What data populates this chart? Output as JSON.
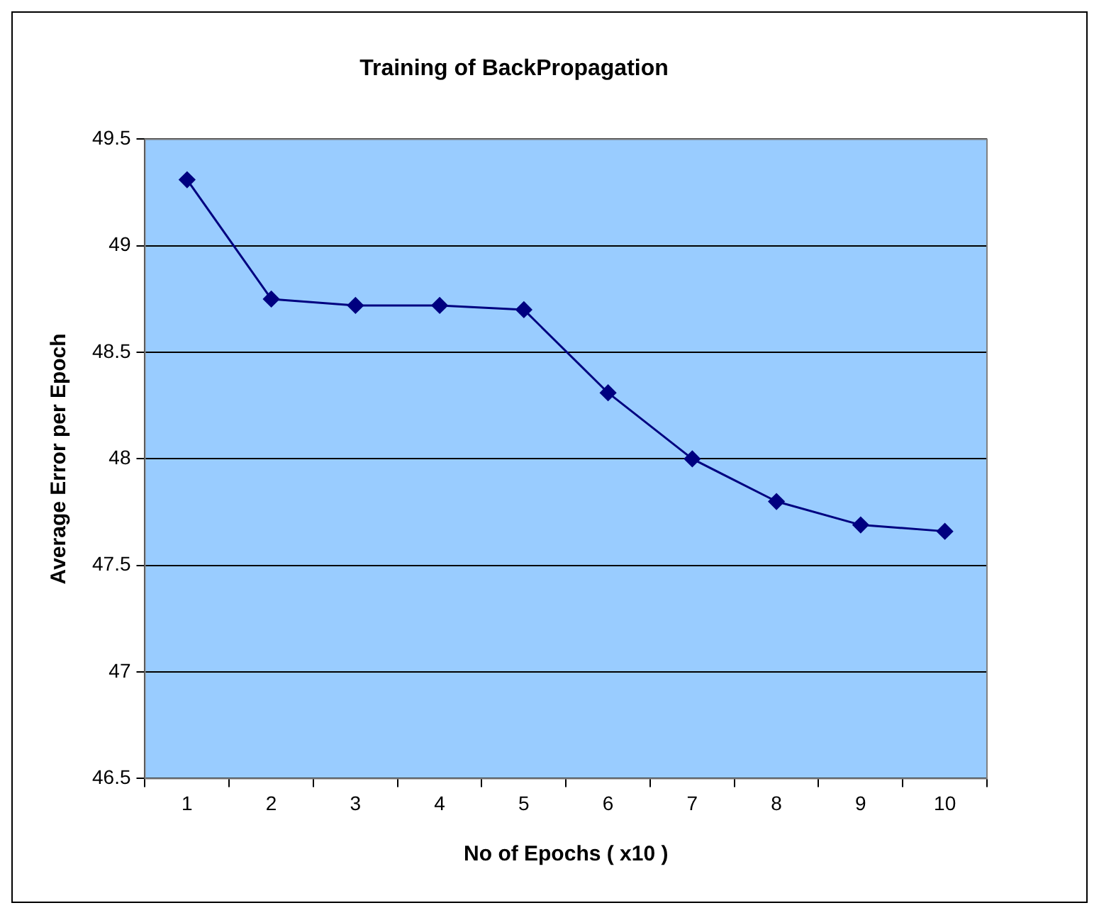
{
  "chart_data": {
    "type": "line",
    "title": "Training of BackPropagation",
    "xlabel": "No of Epochs ( x10 )",
    "ylabel": "Average Error per Epoch",
    "categories": [
      "1",
      "2",
      "3",
      "4",
      "5",
      "6",
      "7",
      "8",
      "9",
      "10"
    ],
    "series": [
      {
        "color": "#000080",
        "values": [
          49.31,
          48.75,
          48.72,
          48.72,
          48.7,
          48.31,
          48.0,
          47.8,
          47.69,
          47.66
        ]
      }
    ],
    "ylim": [
      46.5,
      49.5
    ],
    "yticks": [
      46.5,
      47,
      47.5,
      48,
      48.5,
      49,
      49.5
    ],
    "grid": "y",
    "legend": false,
    "marker": "diamond",
    "line_style": "solid"
  }
}
